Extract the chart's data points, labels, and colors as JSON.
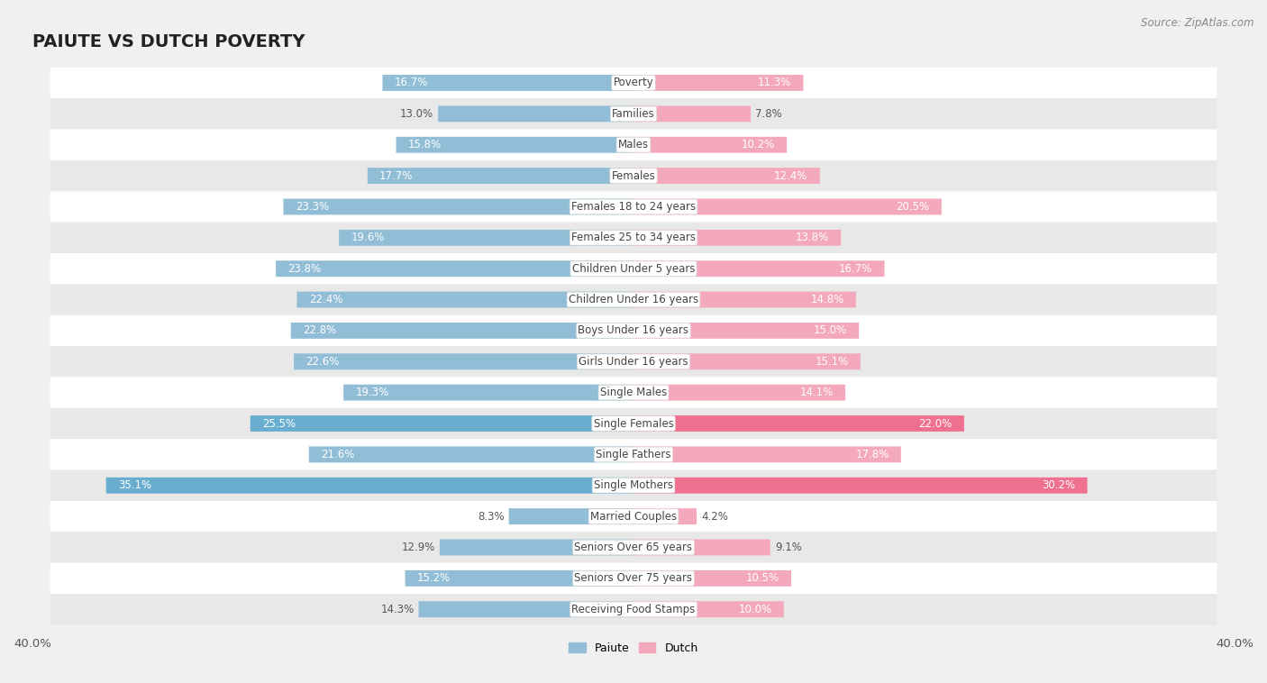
{
  "title": "PAIUTE VS DUTCH POVERTY",
  "source": "Source: ZipAtlas.com",
  "categories": [
    "Poverty",
    "Families",
    "Males",
    "Females",
    "Females 18 to 24 years",
    "Females 25 to 34 years",
    "Children Under 5 years",
    "Children Under 16 years",
    "Boys Under 16 years",
    "Girls Under 16 years",
    "Single Males",
    "Single Females",
    "Single Fathers",
    "Single Mothers",
    "Married Couples",
    "Seniors Over 65 years",
    "Seniors Over 75 years",
    "Receiving Food Stamps"
  ],
  "paiute_values": [
    16.7,
    13.0,
    15.8,
    17.7,
    23.3,
    19.6,
    23.8,
    22.4,
    22.8,
    22.6,
    19.3,
    25.5,
    21.6,
    35.1,
    8.3,
    12.9,
    15.2,
    14.3
  ],
  "dutch_values": [
    11.3,
    7.8,
    10.2,
    12.4,
    20.5,
    13.8,
    16.7,
    14.8,
    15.0,
    15.1,
    14.1,
    22.0,
    17.8,
    30.2,
    4.2,
    9.1,
    10.5,
    10.0
  ],
  "paiute_color": "#92bdd6",
  "dutch_color": "#f4a8bb",
  "highlight_paiute_color": "#6aaecf",
  "highlight_dutch_color": "#f07090",
  "bg_color": "#f0f0f0",
  "row_bg_white": "#ffffff",
  "row_bg_light": "#e8e8e8",
  "axis_max": 40.0,
  "bar_height": 0.52,
  "title_fontsize": 14,
  "cat_fontsize": 8.5,
  "value_fontsize": 8.5,
  "legend_fontsize": 9,
  "highlight_rows": [
    "Single Females",
    "Single Mothers"
  ]
}
